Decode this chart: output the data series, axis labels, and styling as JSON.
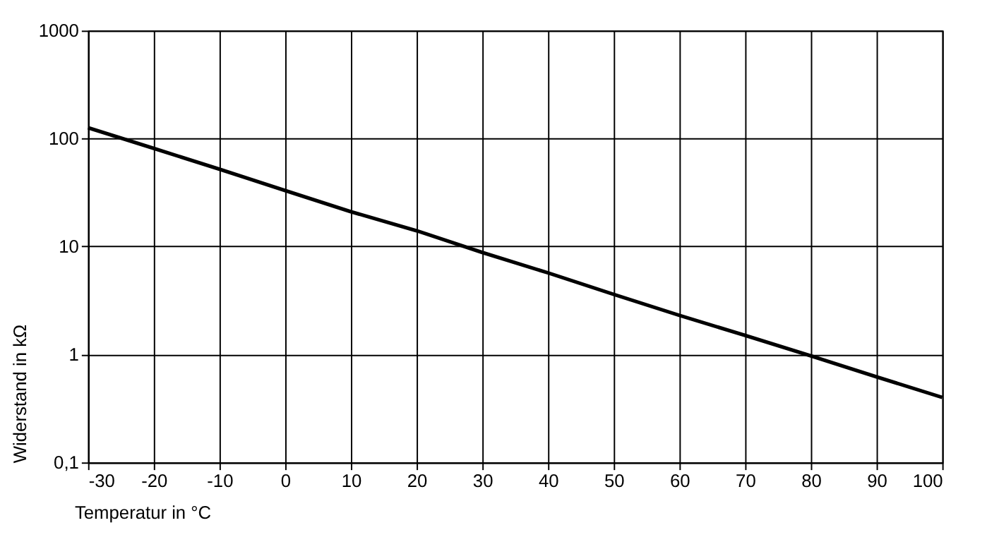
{
  "chart_data": {
    "type": "line",
    "xlabel": "Temperatur in °C",
    "ylabel": "Widerstand in kΩ",
    "x": [
      -30,
      -20,
      -10,
      0,
      10,
      20,
      30,
      40,
      50,
      60,
      70,
      80,
      90,
      100
    ],
    "series": [
      {
        "color": "#000000",
        "values": [
          126,
          81,
          52,
          33,
          21,
          14,
          8.8,
          5.7,
          3.6,
          2.3,
          1.5,
          0.97,
          0.62,
          0.4
        ]
      }
    ],
    "xlim": [
      -30,
      100
    ],
    "xticks": [
      -30,
      -20,
      -10,
      0,
      10,
      20,
      30,
      40,
      50,
      60,
      70,
      80,
      90,
      100
    ],
    "ylim": [
      0.1,
      1000
    ],
    "yticks": [
      {
        "value": 0.1,
        "label": "0,1"
      },
      1,
      10,
      100,
      1000
    ],
    "log": "y",
    "grid": true,
    "marker": "none",
    "line_style": "solid"
  }
}
